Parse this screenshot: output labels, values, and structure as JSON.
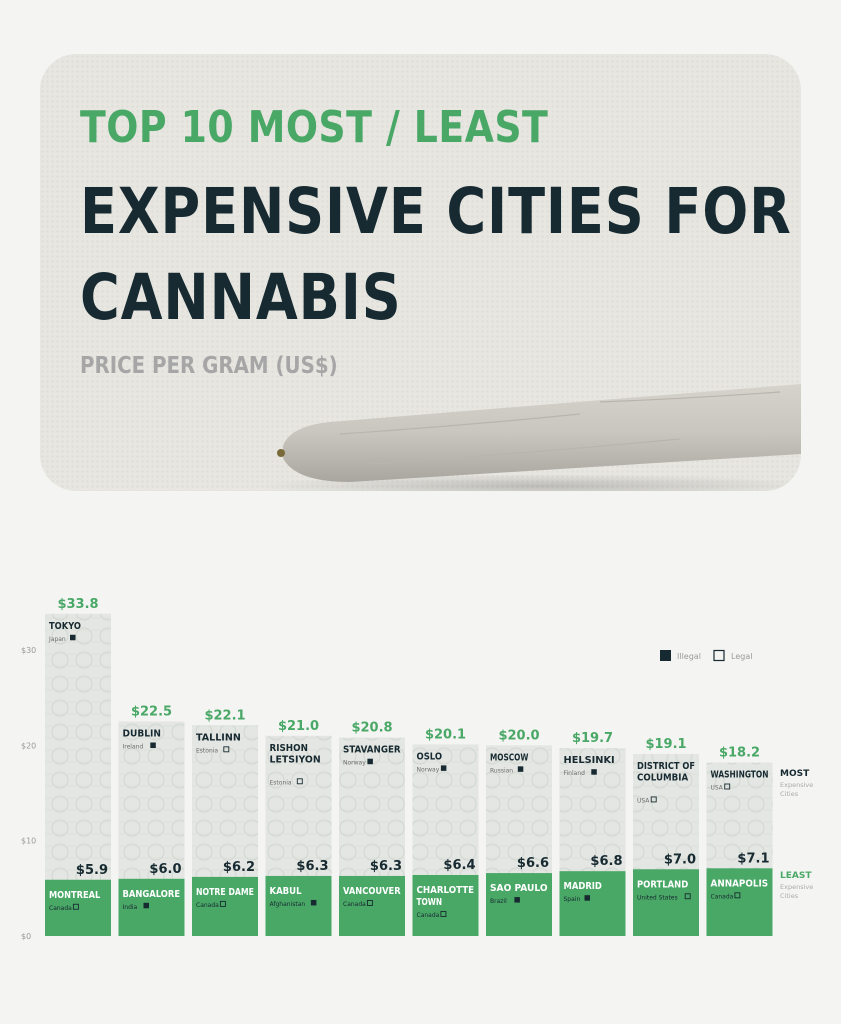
{
  "header": {
    "line1": "TOP 10 MOST / LEAST",
    "line2a": "EXPENSIVE CITIES FOR",
    "line2b": "CANNABIS",
    "subtitle": "PRICE PER GRAM (US$)"
  },
  "legend": {
    "illegal": "Illegal",
    "legal": "Legal"
  },
  "side_labels": {
    "most": "MOST",
    "most_sub1": "Expensive",
    "most_sub2": "Cities",
    "least": "LEAST",
    "least_sub1": "Expensive",
    "least_sub2": "Cities"
  },
  "colors": {
    "green": "#4aa867",
    "dark": "#172a31",
    "hero_bg": "#e7e6e1",
    "page_bg": "#f4f4f3"
  },
  "chart_data": {
    "type": "bar",
    "title": "Top 10 Most / Least Expensive Cities for Cannabis",
    "ylabel": "Price per gram (US$)",
    "ylim": [
      0,
      30
    ],
    "yticks": [
      "$0",
      "$10",
      "$20",
      "$30"
    ],
    "yticks_values": [
      0,
      10,
      20,
      30
    ],
    "legend": [
      "Illegal",
      "Legal"
    ],
    "series": [
      {
        "name": "Most expensive",
        "values": [
          33.8,
          22.5,
          22.1,
          21.0,
          20.8,
          20.1,
          20.0,
          19.7,
          19.1,
          18.2
        ],
        "value_labels": [
          "$33.8",
          "$22.5",
          "$22.1",
          "$21.0",
          "$20.8",
          "$20.1",
          "$20.0",
          "$19.7",
          "$19.1",
          "$18.2"
        ],
        "city_lines": [
          [
            "TOKYO"
          ],
          [
            "DUBLIN"
          ],
          [
            "TALLINN"
          ],
          [
            "RISHON",
            "LETSIYON"
          ],
          [
            "STAVANGER"
          ],
          [
            "OSLO"
          ],
          [
            "MOSCOW"
          ],
          [
            "HELSINKI"
          ],
          [
            "DISTRICT OF",
            "COLUMBIA"
          ],
          [
            "WASHINGTON"
          ]
        ],
        "countries": [
          "Japan",
          "Ireland",
          "Estonia",
          "Estonia",
          "Norway",
          "Norway",
          "Russian",
          "Finland",
          "USA",
          "USA"
        ],
        "legal": [
          false,
          false,
          true,
          true,
          false,
          false,
          false,
          false,
          true,
          true
        ]
      },
      {
        "name": "Least expensive",
        "values": [
          5.9,
          6.0,
          6.2,
          6.3,
          6.3,
          6.4,
          6.6,
          6.8,
          7.0,
          7.1
        ],
        "value_labels": [
          "$5.9",
          "$6.0",
          "$6.2",
          "$6.3",
          "$6.3",
          "$6.4",
          "$6.6",
          "$6.8",
          "$7.0",
          "$7.1"
        ],
        "city_lines": [
          [
            "MONTREAL"
          ],
          [
            "BANGALORE"
          ],
          [
            "NOTRE DAME"
          ],
          [
            "KABUL"
          ],
          [
            "VANCOUVER"
          ],
          [
            "CHARLOTTE",
            "TOWN"
          ],
          [
            "SAO PAULO"
          ],
          [
            "MADRID"
          ],
          [
            "PORTLAND"
          ],
          [
            "ANNAPOLIS"
          ]
        ],
        "countries": [
          "Canada",
          "India",
          "Canada",
          "Afghanistan",
          "Canada",
          "Canada",
          "Brazil",
          "Spain",
          "United States",
          "Canada"
        ],
        "legal": [
          true,
          false,
          true,
          false,
          true,
          true,
          false,
          false,
          true,
          true
        ]
      }
    ]
  }
}
